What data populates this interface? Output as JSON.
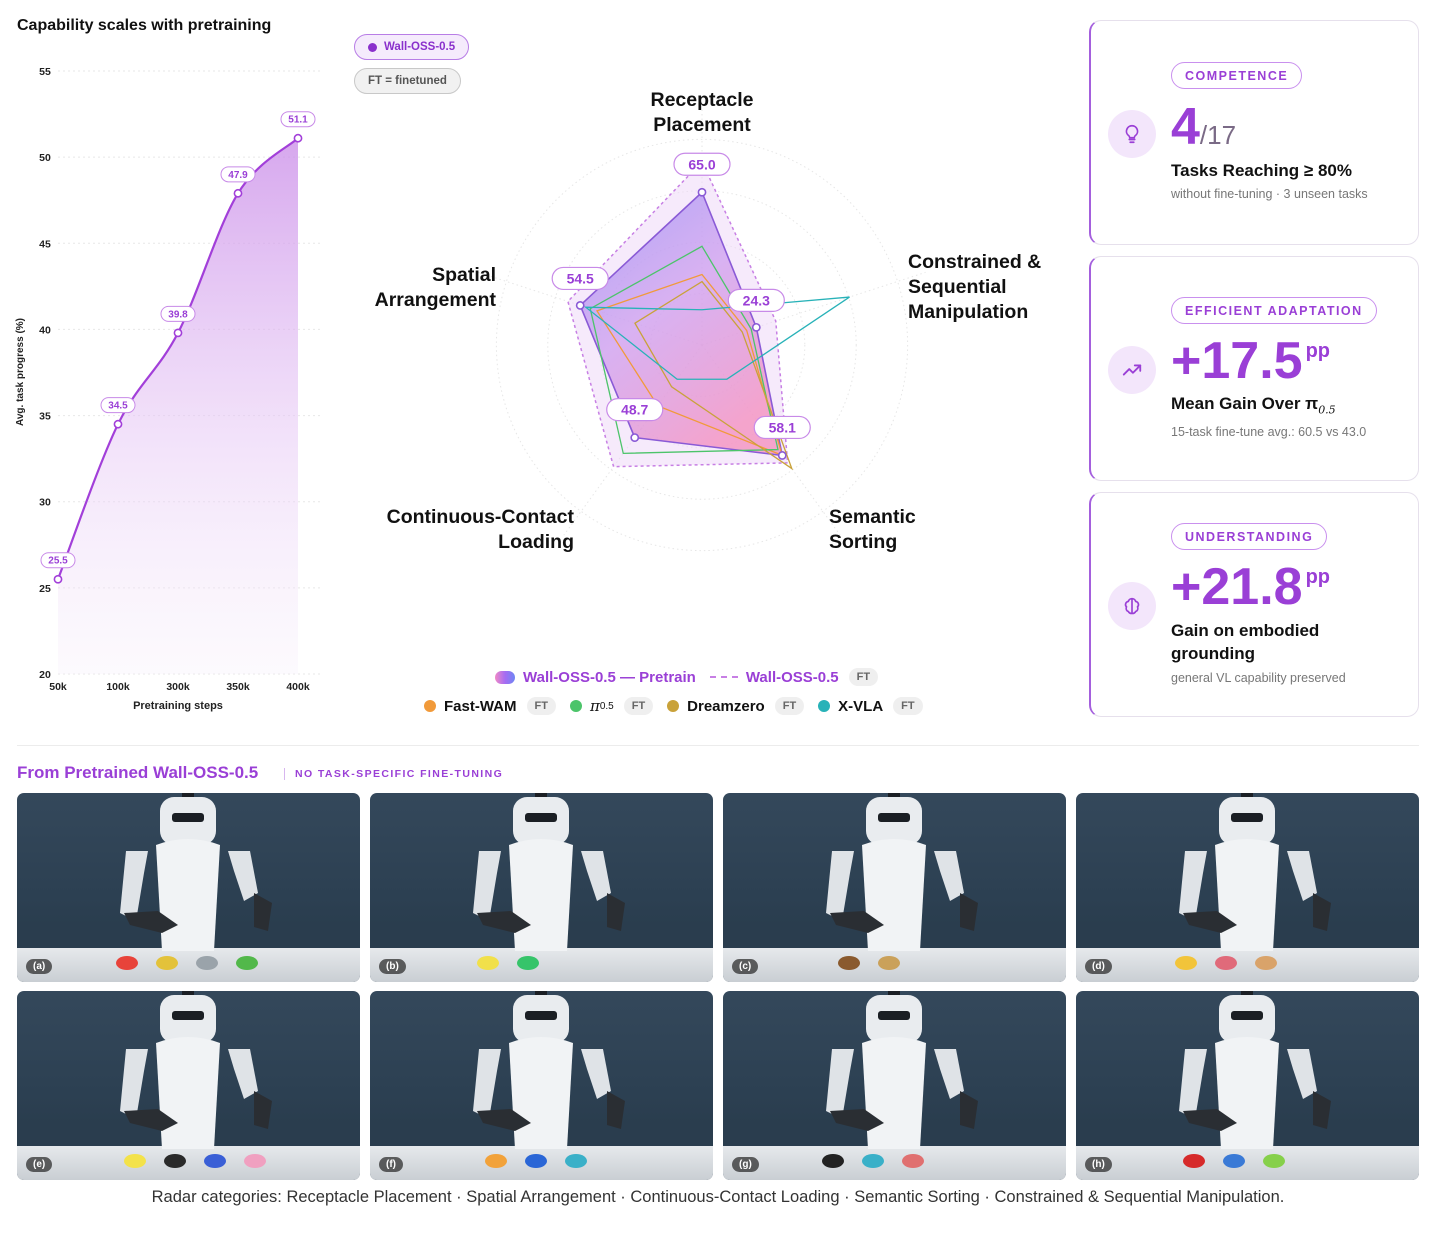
{
  "line_panel": {
    "title": "Capability scales with pretraining"
  },
  "pills": {
    "wall": "Wall-OSS-0.5",
    "ft": "FT = finetuned"
  },
  "chart_data": [
    {
      "type": "line",
      "title": "Capability scales with pretraining",
      "xlabel": "Pretraining steps",
      "ylabel": "Avg. task progress (%)",
      "x": [
        "50k",
        "100k",
        "300k",
        "350k",
        "400k"
      ],
      "ylim": [
        20,
        55
      ],
      "yticks": [
        20,
        25,
        30,
        35,
        40,
        45,
        50,
        55
      ],
      "series": [
        {
          "name": "Wall-OSS-0.5",
          "points": [
            {
              "x": "50k",
              "y": 25.5
            },
            {
              "x": "100k",
              "y": 34.5
            },
            {
              "x": "300k",
              "y": 39.8
            },
            {
              "x": "350k",
              "y": 47.9
            },
            {
              "x": "400k",
              "y": 51.1
            }
          ]
        }
      ],
      "data_labels": [
        "25.5",
        "34.5",
        "39.8",
        "47.9",
        "51.1"
      ],
      "grid": true,
      "color": "#a23fd9"
    },
    {
      "type": "radar",
      "categories": [
        "Receptacle Placement",
        "Constrained & Sequential Manipulation",
        "Semantic Sorting",
        "Continuous-Contact Loading",
        "Spatial Arrangement"
      ],
      "range": [
        0,
        100
      ],
      "series": [
        {
          "name": "Wall-OSS-0.5 — Pretrain",
          "values": [
            65.0,
            24.3,
            58.1,
            48.7,
            54.5
          ],
          "color": "#a66cf2",
          "labels": [
            "65.0",
            "24.3",
            "58.1",
            "48.7",
            "54.5"
          ]
        },
        {
          "name": "Wall-OSS-0.5",
          "ft": true,
          "values": [
            78,
            33,
            62,
            64,
            60
          ],
          "color": "#c77fe4"
        },
        {
          "name": "Fast-WAM",
          "ft": true,
          "values": [
            30,
            20,
            58,
            32,
            47
          ],
          "color": "#f19a3a"
        },
        {
          "name": "π0.5",
          "ft": true,
          "values": [
            42,
            22,
            55,
            57,
            50
          ],
          "color": "#4cc46a"
        },
        {
          "name": "Dreamzero",
          "ft": true,
          "values": [
            27,
            18,
            65,
            22,
            30
          ],
          "color": "#c9a23a"
        },
        {
          "name": "X-VLA",
          "ft": true,
          "values": [
            15,
            66,
            18,
            18,
            52
          ],
          "color": "#28b2b8"
        }
      ]
    }
  ],
  "radar_labels": {
    "top_l1": "Receptacle",
    "top_l2": "Placement",
    "right_l1": "Constrained &",
    "right_l2": "Sequential",
    "right_l3": "Manipulation",
    "bottom_right_l1": "Semantic",
    "bottom_right_l2": "Sorting",
    "bottom_left_l1": "Continuous-Contact",
    "bottom_left_l2": "Loading",
    "left_l1": "Spatial",
    "left_l2": "Arrangement"
  },
  "legend": {
    "pretrain": "Wall-OSS-0.5 — Pretrain",
    "wall_ft": "Wall-OSS-0.5",
    "fast_wam": "Fast-WAM",
    "pi05": "π",
    "pi05_sub": "0.5",
    "dreamzero": "Dreamzero",
    "xvla": "X-VLA",
    "ft_tag": "FT"
  },
  "cards": [
    {
      "badge": "COMPETENCE",
      "icon": "lightbulb-icon",
      "big": "4",
      "big_suffix": "/17",
      "desc": "Tasks Reaching ≥ 80%",
      "sub": "without fine-tuning · 3 unseen tasks"
    },
    {
      "badge": "EFFICIENT ADAPTATION",
      "icon": "trending-up-icon",
      "big": "+17.5",
      "big_suffix": "pp",
      "desc": "Mean Gain Over π",
      "desc_sub": "0.5",
      "sub": "15-task fine-tune avg.: 60.5 vs 43.0"
    },
    {
      "badge": "UNDERSTANDING",
      "icon": "brain-icon",
      "big": "+21.8",
      "big_suffix": "pp",
      "desc_l1": "Gain on embodied",
      "desc_l2": "grounding",
      "sub": "general VL capability preserved"
    }
  ],
  "gallery": {
    "title": "From Pretrained Wall-OSS-0.5",
    "subtitle": "NO TASK-SPECIFIC FINE-TUNING",
    "tiles": [
      "(a)",
      "(b)",
      "(c)",
      "(d)",
      "(e)",
      "(f)",
      "(g)",
      "(h)"
    ]
  },
  "caption": "Radar categories: Receptacle Placement · Spatial Arrangement · Continuous-Contact Loading · Semantic Sorting · Constrained & Sequential Manipulation."
}
